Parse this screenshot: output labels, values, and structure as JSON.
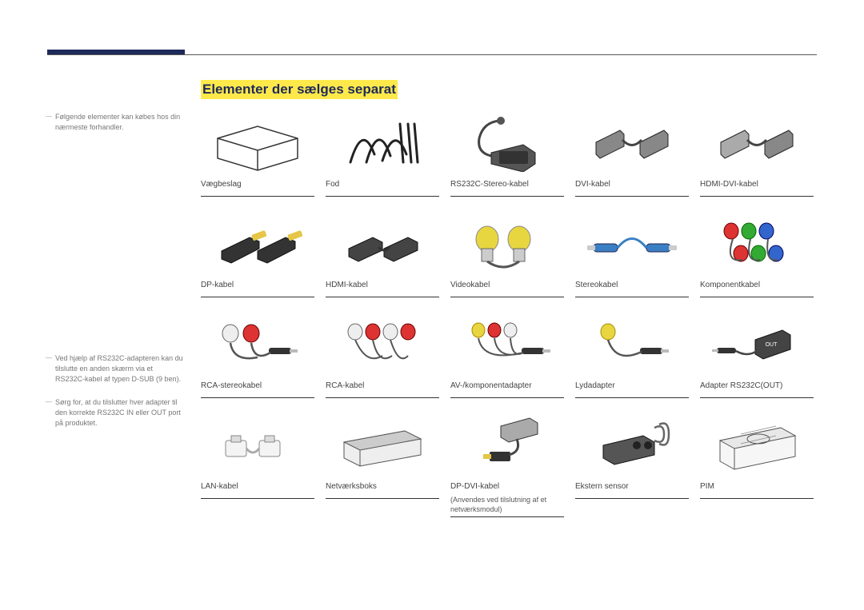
{
  "title": "Elementer der sælges separat",
  "sidebar": {
    "note1": "Følgende elementer kan købes hos din nærmeste forhandler.",
    "note2": "Ved hjælp af RS232C-adapteren kan du tilslutte en anden skærm via et RS232C-kabel af typen D-SUB (9 ben).",
    "note3": "Sørg for, at du tilslutter hver adapter til den korrekte RS232C IN eller OUT port på produktet."
  },
  "accent_color": "#1e2a5a",
  "highlight_color": "#ffe94a",
  "rows": [
    {
      "cells": [
        {
          "label": "Vægbeslag",
          "icon": "wallmount"
        },
        {
          "label": "Fod",
          "icon": "stand"
        },
        {
          "label": "RS232C-Stereo-kabel",
          "icon": "rs232c"
        },
        {
          "label": "DVI-kabel",
          "icon": "dvi"
        },
        {
          "label": "HDMI-DVI-kabel",
          "icon": "hdmidvi"
        }
      ]
    },
    {
      "cells": [
        {
          "label": "DP-kabel",
          "icon": "dp"
        },
        {
          "label": "HDMI-kabel",
          "icon": "hdmi"
        },
        {
          "label": "Videokabel",
          "icon": "video"
        },
        {
          "label": "Stereokabel",
          "icon": "stereo"
        },
        {
          "label": "Komponentkabel",
          "icon": "component"
        }
      ]
    },
    {
      "cells": [
        {
          "label": "RCA-stereokabel",
          "icon": "rcastereo"
        },
        {
          "label": "RCA-kabel",
          "icon": "rca"
        },
        {
          "label": "AV-/komponentadapter",
          "icon": "avcomp"
        },
        {
          "label": "Lydadapter",
          "icon": "audioadapt"
        },
        {
          "label": "Adapter RS232C(OUT)",
          "icon": "rs232out"
        }
      ]
    },
    {
      "cells": [
        {
          "label": "LAN-kabel",
          "icon": "lan"
        },
        {
          "label": "Netværksboks",
          "icon": "netbox"
        },
        {
          "label": "DP-DVI-kabel",
          "sublabel": "(Anvendes ved tilslutning af et netværksmodul)",
          "icon": "dpdvi"
        },
        {
          "label": "Ekstern sensor",
          "icon": "extsensor"
        },
        {
          "label": "PIM",
          "icon": "pim"
        }
      ]
    }
  ]
}
